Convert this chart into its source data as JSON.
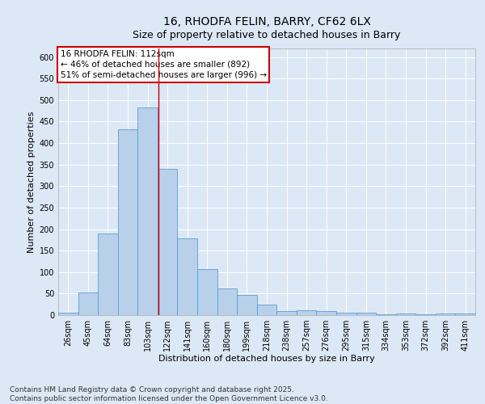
{
  "title1": "16, RHODFA FELIN, BARRY, CF62 6LX",
  "title2": "Size of property relative to detached houses in Barry",
  "xlabel": "Distribution of detached houses by size in Barry",
  "ylabel": "Number of detached properties",
  "categories": [
    "26sqm",
    "45sqm",
    "64sqm",
    "83sqm",
    "103sqm",
    "122sqm",
    "141sqm",
    "160sqm",
    "180sqm",
    "199sqm",
    "218sqm",
    "238sqm",
    "257sqm",
    "276sqm",
    "295sqm",
    "315sqm",
    "334sqm",
    "353sqm",
    "372sqm",
    "392sqm",
    "411sqm"
  ],
  "values": [
    5,
    52,
    190,
    432,
    482,
    340,
    178,
    108,
    62,
    47,
    24,
    9,
    11,
    10,
    5,
    5,
    2,
    4,
    2,
    3,
    3
  ],
  "bar_color": "#b8d0ea",
  "bar_edge_color": "#5a9fd4",
  "vline_x": 4.55,
  "vline_color": "#cc0000",
  "annotation_text": "16 RHODFA FELIN: 112sqm\n← 46% of detached houses are smaller (892)\n51% of semi-detached houses are larger (996) →",
  "annotation_box_color": "#ffffff",
  "annotation_border_color": "#cc0000",
  "ylim": [
    0,
    620
  ],
  "yticks": [
    0,
    50,
    100,
    150,
    200,
    250,
    300,
    350,
    400,
    450,
    500,
    550,
    600
  ],
  "bg_color": "#dce8f5",
  "plot_bg_color": "#dce8f5",
  "footer1": "Contains HM Land Registry data © Crown copyright and database right 2025.",
  "footer2": "Contains public sector information licensed under the Open Government Licence v3.0.",
  "title_fontsize": 10,
  "subtitle_fontsize": 9,
  "axis_label_fontsize": 8,
  "tick_fontsize": 7,
  "footer_fontsize": 6.5,
  "annotation_fontsize": 7.5
}
